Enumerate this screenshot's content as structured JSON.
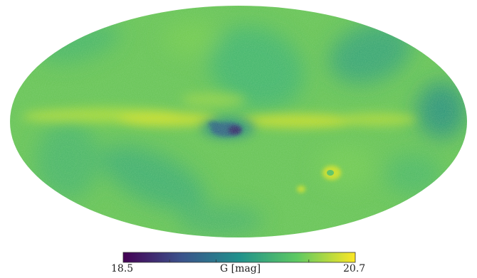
{
  "map": {
    "projection": "mollweide",
    "colormap": "viridis",
    "colormap_stops": [
      "#440154",
      "#3b528b",
      "#21918c",
      "#5ec962",
      "#fde725"
    ],
    "background_color": "#ffffff"
  },
  "colorbar": {
    "min_label": "18.5",
    "max_label": "20.7",
    "title": "G [mag]",
    "min": 18.5,
    "max": 20.7,
    "tick_values": [
      18.94,
      19.38,
      20.26
    ]
  }
}
